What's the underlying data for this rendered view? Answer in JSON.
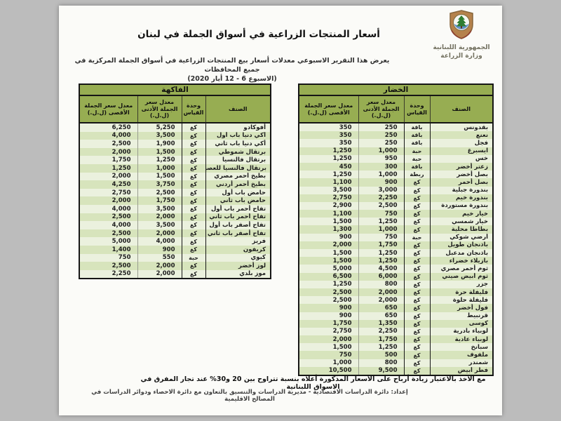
{
  "header": {
    "org_line1": "الجمهورية اللبنانية",
    "org_line2": "وزارة الزراعة",
    "title": "أسعار المنتجات الزراعية في أسواق الجملة في لبنان",
    "subtitle": "يعرض هذا التقرير الاسبوعي معدلات أسعار بيع المنتجات الزراعية في أسواق الجملة المركزية في جميع المحافظات",
    "date_line": "(الاسبوع 6 - 12 أيار 2020)"
  },
  "table_columns": {
    "item": "الصنف",
    "unit": "وحدة القياس",
    "min": "معدل سعر الجملة الأدنى (ل.ل.)",
    "max": "معدل سعر الجملة الأقصى (ل.ل.)"
  },
  "tables": {
    "vegetables": {
      "title": "الخضار",
      "rows": [
        [
          "بقدونس",
          "باقة",
          "250",
          "350"
        ],
        [
          "نعنع",
          "باقة",
          "250",
          "350"
        ],
        [
          "فجل",
          "باقة",
          "250",
          "350"
        ],
        [
          "ايسبرغ",
          "حبة",
          "1,000",
          "1,250"
        ],
        [
          "خس",
          "حبة",
          "950",
          "1,250"
        ],
        [
          "زعتر أخضر",
          "باقة",
          "300",
          "450"
        ],
        [
          "بصل أخضر",
          "ربطة",
          "1,000",
          "1,250"
        ],
        [
          "بصل أحمر",
          "كغ",
          "900",
          "1,100"
        ],
        [
          "بندورة جبلية",
          "كغ",
          "3,000",
          "3,500"
        ],
        [
          "بندورة خيم",
          "كغ",
          "2,250",
          "2,750"
        ],
        [
          "بندورة مستوردة",
          "كغ",
          "2,500",
          "2,900"
        ],
        [
          "خيار خيم",
          "كغ",
          "750",
          "1,100"
        ],
        [
          "خيار شمسي",
          "كغ",
          "1,250",
          "1,500"
        ],
        [
          "بطاطا محلية",
          "كغ",
          "1,000",
          "1,300"
        ],
        [
          "أرضي شوكي",
          "حبة",
          "750",
          "900"
        ],
        [
          "باذنجان طويل",
          "كغ",
          "1,750",
          "2,000"
        ],
        [
          "باذنجان مدعبل",
          "كغ",
          "1,250",
          "1,500"
        ],
        [
          "بازيلاء خضراء",
          "كغ",
          "1,250",
          "1,500"
        ],
        [
          "ثوم أحمر مصري",
          "كغ",
          "4,500",
          "5,000"
        ],
        [
          "ثوم أبيض صيني",
          "كغ",
          "6,000",
          "6,500"
        ],
        [
          "جزر",
          "كغ",
          "800",
          "1,250"
        ],
        [
          "فليفلة حرة",
          "كغ",
          "2,000",
          "2,500"
        ],
        [
          "فليفلة حلوة",
          "كغ",
          "2,000",
          "2,500"
        ],
        [
          "فول أخضر",
          "كغ",
          "650",
          "900"
        ],
        [
          "قرنبيط",
          "كغ",
          "650",
          "900"
        ],
        [
          "كوسى",
          "كغ",
          "1,350",
          "1,750"
        ],
        [
          "لوبياء بادرية",
          "كغ",
          "2,250",
          "2,750"
        ],
        [
          "لوبياء عادية",
          "كغ",
          "1,750",
          "2,000"
        ],
        [
          "سبانخ",
          "كغ",
          "1,250",
          "1,500"
        ],
        [
          "ملفوف",
          "كغ",
          "500",
          "750"
        ],
        [
          "شمندر",
          "كغ",
          "800",
          "1,000"
        ],
        [
          "فطر أبيض",
          "كغ",
          "9,500",
          "10,500"
        ]
      ]
    },
    "fruits": {
      "title": "الفاكهة",
      "rows": [
        [
          "أفوكادو",
          "كغ",
          "5,250",
          "6,250"
        ],
        [
          "أكي دنيا باب أول",
          "كغ",
          "3,500",
          "4,000"
        ],
        [
          "أكي دنيا باب ثاني",
          "كغ",
          "1,900",
          "2,500"
        ],
        [
          "برتقال شموطي",
          "كغ",
          "1,500",
          "2,000"
        ],
        [
          "برتقال فالنسيا",
          "كغ",
          "1,250",
          "1,750"
        ],
        [
          "برتقال فالنسيا للعصير",
          "كغ",
          "1,000",
          "1,250"
        ],
        [
          "بطيخ أحمر مصري",
          "كغ",
          "1,500",
          "2,000"
        ],
        [
          "بطيخ أحمر أردني",
          "كغ",
          "3,750",
          "4,250"
        ],
        [
          "حامض باب أول",
          "كغ",
          "2,500",
          "2,750"
        ],
        [
          "حامض باب ثاني",
          "كغ",
          "1,750",
          "2,000"
        ],
        [
          "تفاح أحمر باب أول",
          "كغ",
          "3,500",
          "4,000"
        ],
        [
          "تفاح أحمر باب ثاني",
          "كغ",
          "2,000",
          "2,500"
        ],
        [
          "تفاح أصفر باب أول",
          "كغ",
          "3,500",
          "4,000"
        ],
        [
          "تفاح أصفر باب ثاني",
          "كغ",
          "2,000",
          "2,500"
        ],
        [
          "فريز",
          "كغ",
          "4,000",
          "5,000"
        ],
        [
          "كريفون",
          "كغ",
          "900",
          "1,400"
        ],
        [
          "كيوي",
          "حبة",
          "550",
          "750"
        ],
        [
          "لوز أخضر",
          "كغ",
          "2,000",
          "2,500"
        ],
        [
          "موز بلدي",
          "كغ",
          "2,000",
          "2,250"
        ]
      ]
    }
  },
  "footer": {
    "note": "مع الاخذ بالاعتبار زيادة أرباح على الأسعار المذكورة أعلاه بنسبة تتراوح بين 20 و30% عند تجار المفرق في الاسواق اللبنانية",
    "credit": "إعداد: دائرة الدراسات الاقتصادية - مديرية الدراسات والتنسيق بالتعاون مع دائرة الاحصاء ودوائر الدراسات في المصالح الاقليمية"
  },
  "colors": {
    "header_green": "#97ad52",
    "row_light": "#ebf1de",
    "row_dark": "#d7e4bc",
    "page_bg": "#fbfbf8",
    "surround_gray": "#bcbcbc"
  }
}
